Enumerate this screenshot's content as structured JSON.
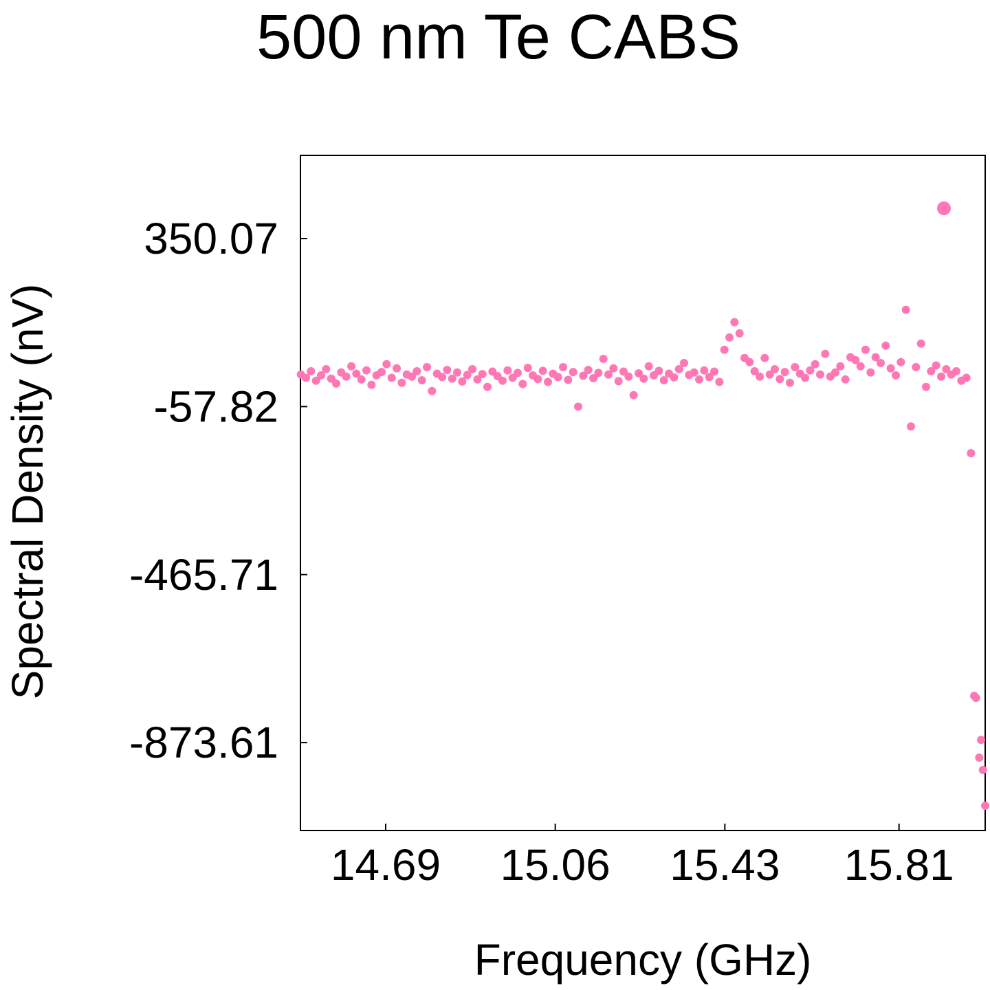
{
  "chart_data": {
    "type": "scatter",
    "title": "500 nm Te CABS",
    "xlabel": "Frequency (GHz)",
    "ylabel": "Spectral Density (nV)",
    "xlim": [
      14.504,
      15.998
    ],
    "ylim": [
      -1087,
      552
    ],
    "xticks": [
      14.69,
      15.06,
      15.43,
      15.81
    ],
    "yticks": [
      350.07,
      -57.82,
      -465.71,
      -873.61
    ],
    "series": [
      {
        "color": "#ff77b4",
        "size": 6,
        "x": [
          14.505,
          14.516,
          14.527,
          14.538,
          14.549,
          14.56,
          14.571,
          14.582,
          14.593,
          14.604,
          14.615,
          14.626,
          14.637,
          14.648,
          14.659,
          14.67,
          14.681,
          14.692,
          14.703,
          14.714,
          14.725,
          14.736,
          14.747,
          14.758,
          14.769,
          14.78,
          14.791,
          14.802,
          14.813,
          14.824,
          14.835,
          14.846,
          14.857,
          14.868,
          14.879,
          14.89,
          14.901,
          14.912,
          14.923,
          14.934,
          14.945,
          14.956,
          14.967,
          14.978,
          14.989,
          15.0,
          15.011,
          15.022,
          15.033,
          15.044,
          15.055,
          15.066,
          15.077,
          15.088,
          15.099,
          15.11,
          15.121,
          15.132,
          15.143,
          15.154,
          15.165,
          15.176,
          15.187,
          15.198,
          15.209,
          15.22,
          15.231,
          15.242,
          15.253,
          15.264,
          15.275,
          15.286,
          15.297,
          15.308,
          15.319,
          15.33,
          15.341,
          15.352,
          15.363,
          15.374,
          15.385,
          15.396,
          15.407,
          15.418,
          15.429,
          15.44,
          15.451,
          15.462,
          15.473,
          15.484,
          15.495,
          15.506,
          15.517,
          15.528,
          15.539,
          15.55,
          15.561,
          15.572,
          15.583,
          15.594,
          15.605,
          15.616,
          15.627,
          15.638,
          15.649,
          15.66,
          15.671,
          15.682,
          15.693,
          15.704,
          15.715,
          15.726,
          15.737,
          15.748,
          15.759,
          15.77,
          15.781,
          15.792,
          15.803,
          15.814,
          15.825,
          15.836,
          15.847,
          15.858,
          15.869,
          15.88,
          15.891,
          15.902,
          15.913,
          15.924,
          15.935,
          15.946,
          15.957,
          15.967,
          15.974,
          15.978,
          15.985,
          15.989,
          15.993,
          15.998
        ],
        "values": [
          20,
          12,
          28,
          5,
          18,
          33,
          10,
          -2,
          25,
          15,
          40,
          22,
          8,
          30,
          -5,
          18,
          26,
          45,
          12,
          35,
          0,
          20,
          15,
          28,
          6,
          38,
          -20,
          22,
          14,
          31,
          10,
          25,
          3,
          19,
          33,
          8,
          21,
          -10,
          27,
          16,
          5,
          30,
          12,
          24,
          -3,
          36,
          18,
          9,
          29,
          2,
          22,
          14,
          38,
          7,
          26,
          -58,
          17,
          31,
          11,
          24,
          58,
          20,
          35,
          4,
          27,
          15,
          -30,
          23,
          10,
          40,
          18,
          29,
          6,
          22,
          13,
          33,
          48,
          19,
          25,
          8,
          30,
          14,
          27,
          2,
          80,
          110,
          147,
          120,
          60,
          50,
          28,
          15,
          60,
          20,
          33,
          9,
          26,
          0,
          38,
          22,
          12,
          30,
          45,
          20,
          70,
          15,
          25,
          40,
          8,
          62,
          55,
          40,
          80,
          25,
          62,
          48,
          90,
          35,
          18,
          50,
          177,
          -106,
          38,
          95,
          -10,
          28,
          42,
          15,
          33,
          20,
          28,
          5,
          12,
          -171,
          -760,
          -765,
          -910,
          -867,
          -940,
          -1027
        ]
      },
      {
        "color": "#ff77b4",
        "size": 10,
        "x": [
          15.908
        ],
        "values": [
          423.5
        ]
      }
    ]
  }
}
